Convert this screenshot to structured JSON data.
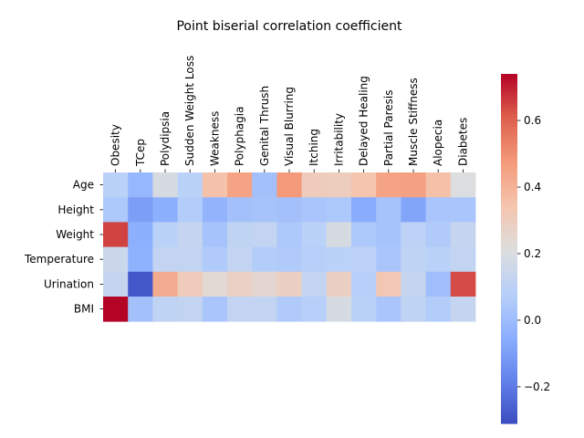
{
  "chart_data": {
    "type": "heatmap",
    "title": "Point biserial correlation coefficient",
    "columns": [
      "Obesity",
      "TCep",
      "Polydipsia",
      "Sudden Weight Loss",
      "Weakness",
      "Polyphagia",
      "Genital Thrush",
      "Visual Blurring",
      "Itching",
      "Irritability",
      "Delayed Healing",
      "Partial Paresis",
      "Muscle Stiffness",
      "Alopecia",
      "Diabetes"
    ],
    "rows": [
      "Age",
      "Height",
      "Weight",
      "Temperature",
      "Urination",
      "BMI"
    ],
    "values": [
      [
        0.09,
        -0.02,
        0.19,
        0.09,
        0.35,
        0.45,
        0.02,
        0.48,
        0.31,
        0.3,
        0.34,
        0.45,
        0.46,
        0.36,
        0.21
      ],
      [
        0.05,
        -0.1,
        -0.05,
        0.07,
        -0.03,
        0.02,
        0.03,
        0.02,
        0.04,
        0.05,
        -0.06,
        0.03,
        -0.08,
        0.04,
        0.04
      ],
      [
        0.65,
        -0.05,
        0.09,
        0.13,
        0.03,
        0.11,
        0.12,
        0.05,
        0.09,
        0.19,
        0.05,
        0.03,
        0.1,
        0.06,
        0.13
      ],
      [
        0.15,
        -0.04,
        0.12,
        0.12,
        0.06,
        0.12,
        0.07,
        0.06,
        0.08,
        0.09,
        0.1,
        0.04,
        0.11,
        0.09,
        0.12
      ],
      [
        0.13,
        -0.28,
        0.42,
        0.31,
        0.24,
        0.28,
        0.25,
        0.29,
        0.12,
        0.29,
        0.08,
        0.33,
        0.13,
        0.01,
        0.64
      ],
      [
        0.74,
        0.02,
        0.11,
        0.12,
        0.04,
        0.12,
        0.12,
        0.06,
        0.08,
        0.19,
        0.09,
        0.04,
        0.11,
        0.07,
        0.13
      ]
    ],
    "colorbar": {
      "colormap": "coolwarm",
      "vmin": -0.31,
      "vmax": 0.74,
      "ticks": [
        -0.2,
        0.0,
        0.2,
        0.4,
        0.6
      ],
      "tick_labels": [
        "−0.2",
        "0.0",
        "0.2",
        "0.4",
        "0.6"
      ]
    }
  }
}
